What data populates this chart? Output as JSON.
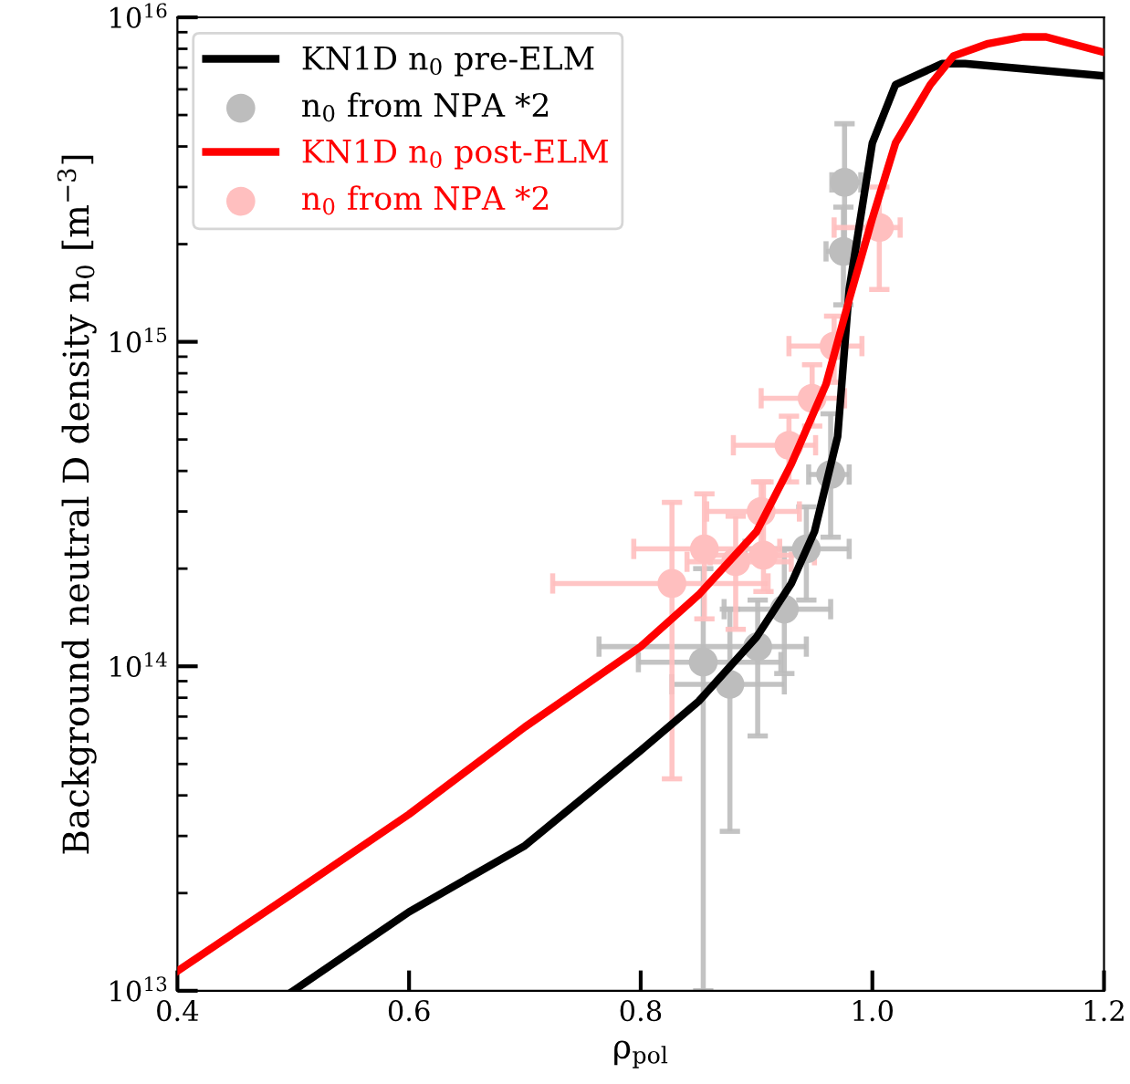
{
  "chart_data": {
    "type": "line",
    "xlabel": "ρ$_{pol}$",
    "ylabel": "Background neutral D density n$_{0}$ [m$^{−3}$]",
    "log": "y",
    "xlim": [
      0.4,
      1.2
    ],
    "xticks": [
      0.4,
      0.6,
      0.8,
      {
        "value": 1.0,
        "label": "1.0"
      },
      1.2
    ],
    "ylim": [
      10000000000000.0,
      1e+16
    ],
    "yticks": [
      {
        "value": 10000000000000.0,
        "label": "10$^{13}$"
      },
      {
        "value": 100000000000000.0,
        "label": "10$^{14}$"
      },
      {
        "value": 1000000000000000.0,
        "label": "10$^{15}$"
      },
      {
        "value": 1e+16,
        "label": "10$^{16}$"
      }
    ],
    "grid": false,
    "legend": "top left",
    "series": [
      {
        "name": "KN1D n$_{0}$ pre-ELM",
        "color": "#000000",
        "marker": "none",
        "x": [
          0.5,
          0.6,
          0.7,
          0.8,
          0.85,
          0.9,
          0.93,
          0.95,
          0.97,
          0.98,
          1.0,
          1.02,
          1.06,
          1.08,
          1.2
        ],
        "values": [
          10000000000000.0,
          17500000000000.0,
          28000000000000.0,
          55000000000000.0,
          78000000000000.0,
          123000000000000.0,
          180000000000000.0,
          260000000000000.0,
          510000000000000.0,
          1450000000000000.0,
          4100000000000000.0,
          6200000000000000.0,
          7200000000000000.0,
          7200000000000000.0,
          6600000000000000.0
        ]
      },
      {
        "name": "n$_{0}$ from NPA *2",
        "type": "scatter",
        "color": "#bdbdbd",
        "marker": "circle",
        "x": [
          0.976,
          0.975,
          0.964,
          0.943,
          0.924,
          0.901,
          0.854,
          0.877
        ],
        "values": [
          3100000000000000.0,
          1900000000000000.0,
          390000000000000.0,
          230000000000000.0,
          150000000000000.0,
          115000000000000.0,
          103000000000000.0,
          88000000000000.0
        ],
        "errors": [
          [
            2000000000000000.0,
            4700000000000000.0
          ],
          [
            1300000000000000.0,
            2600000000000000.0
          ],
          [
            250000000000000.0,
            600000000000000.0
          ],
          [
            160000000000000.0,
            310000000000000.0
          ],
          [
            95000000000000.0,
            230000000000000.0
          ],
          [
            61000000000000.0,
            160000000000000.0
          ],
          [
            10000000000000.0,
            200000000000000.0
          ],
          [
            31000000000000.0,
            150000000000000.0
          ]
        ],
        "xerrors": [
          [
            0.965,
            0.99
          ],
          [
            0.96,
            0.99
          ],
          [
            0.945,
            0.98
          ],
          [
            0.89,
            0.98
          ],
          [
            0.872,
            0.964
          ],
          [
            0.764,
            0.943
          ],
          [
            0.798,
            0.921
          ],
          [
            0.827,
            0.924
          ]
        ]
      },
      {
        "name": "KN1D n$_{0}$ post-ELM",
        "color": "#ff0000",
        "marker": "none",
        "x": [
          0.4,
          0.5,
          0.6,
          0.7,
          0.8,
          0.85,
          0.9,
          0.93,
          0.96,
          0.98,
          1.0,
          1.02,
          1.05,
          1.07,
          1.1,
          1.13,
          1.15,
          1.2
        ],
        "values": [
          11500000000000.0,
          20000000000000.0,
          35000000000000.0,
          65000000000000.0,
          115000000000000.0,
          166000000000000.0,
          260000000000000.0,
          420000000000000.0,
          740000000000000.0,
          1350000000000000.0,
          2400000000000000.0,
          4100000000000000.0,
          6200000000000000.0,
          7600000000000000.0,
          8300000000000000.0,
          8700000000000000.0,
          8700000000000000.0,
          7800000000000000.0
        ]
      },
      {
        "name": "n$_{0}$ from NPA *2",
        "type": "scatter",
        "color": "#ffbfbf",
        "marker": "circle",
        "x": [
          1.006,
          0.967,
          0.948,
          0.928,
          0.904,
          0.855,
          0.882,
          0.906,
          0.827
        ],
        "values": [
          2250000000000000.0,
          970000000000000.0,
          670000000000000.0,
          480000000000000.0,
          300000000000000.0,
          230000000000000.0,
          210000000000000.0,
          220000000000000.0,
          180000000000000.0
        ],
        "errors": [
          [
            1450000000000000.0,
            3000000000000000.0
          ],
          [
            750000000000000.0,
            1200000000000000.0
          ],
          [
            550000000000000.0,
            850000000000000.0
          ],
          [
            370000000000000.0,
            590000000000000.0
          ],
          [
            230000000000000.0,
            370000000000000.0
          ],
          [
            140000000000000.0,
            340000000000000.0
          ],
          [
            130000000000000.0,
            290000000000000.0
          ],
          [
            170000000000000.0,
            370000000000000.0
          ],
          [
            45000000000000.0,
            320000000000000.0
          ]
        ],
        "xerrors": [
          [
            0.967,
            1.024
          ],
          [
            0.928,
            0.991
          ],
          [
            0.904,
            0.976
          ],
          [
            0.88,
            0.951
          ],
          [
            0.857,
            0.937
          ],
          [
            0.794,
            0.92
          ],
          [
            0.84,
            0.93
          ],
          [
            0.86,
            0.95
          ],
          [
            0.724,
            0.91
          ]
        ]
      }
    ]
  }
}
